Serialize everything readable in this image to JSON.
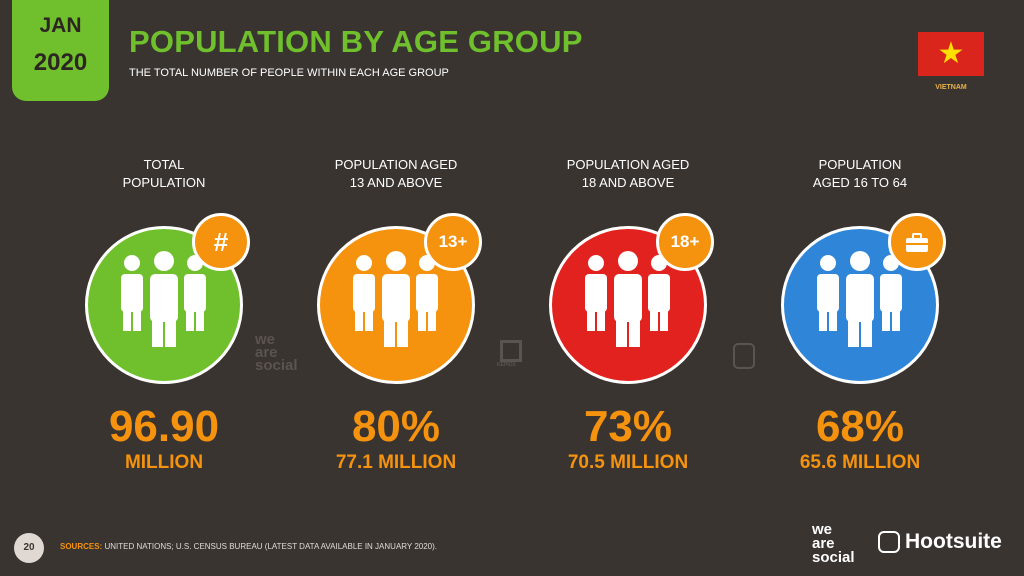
{
  "header": {
    "month": "JAN",
    "year": "2020",
    "title": "POPULATION BY AGE GROUP",
    "subtitle": "THE TOTAL NUMBER OF PEOPLE WITHIN EACH AGE GROUP",
    "country": "VIETNAM",
    "flag_icon": "vietnam-flag-icon"
  },
  "colors": {
    "background": "#3a3431",
    "accent_green": "#6fc02c",
    "accent_orange": "#f5920e",
    "red": "#e2221f",
    "blue": "#2f86d9"
  },
  "stats": [
    {
      "label": "TOTAL\nPOPULATION",
      "badge": "#",
      "value": "96.90",
      "sub": "MILLION",
      "color": "#6fc02c"
    },
    {
      "label": "POPULATION AGED\n13 AND ABOVE",
      "badge": "13+",
      "value": "80%",
      "sub": "77.1 MILLION",
      "color": "#f5920e"
    },
    {
      "label": "POPULATION AGED\n18 AND ABOVE",
      "badge": "18+",
      "value": "73%",
      "sub": "70.5 MILLION",
      "color": "#e2221f"
    },
    {
      "label": "POPULATION\nAGED 16 TO 64",
      "badge": "",
      "value": "68%",
      "sub": "65.6 MILLION",
      "color": "#2f86d9"
    }
  ],
  "watermarks": {
    "wearesocial": "we\nare\nsocial",
    "kepios": "KEPIOS"
  },
  "footer": {
    "page": "20",
    "sources_label": "SOURCES:",
    "sources_text": "UNITED NATIONS; U.S. CENSUS BUREAU (LATEST DATA AVAILABLE IN JANUARY 2020).",
    "brand1": "we\nare\nsocial",
    "brand2": "Hootsuite"
  }
}
